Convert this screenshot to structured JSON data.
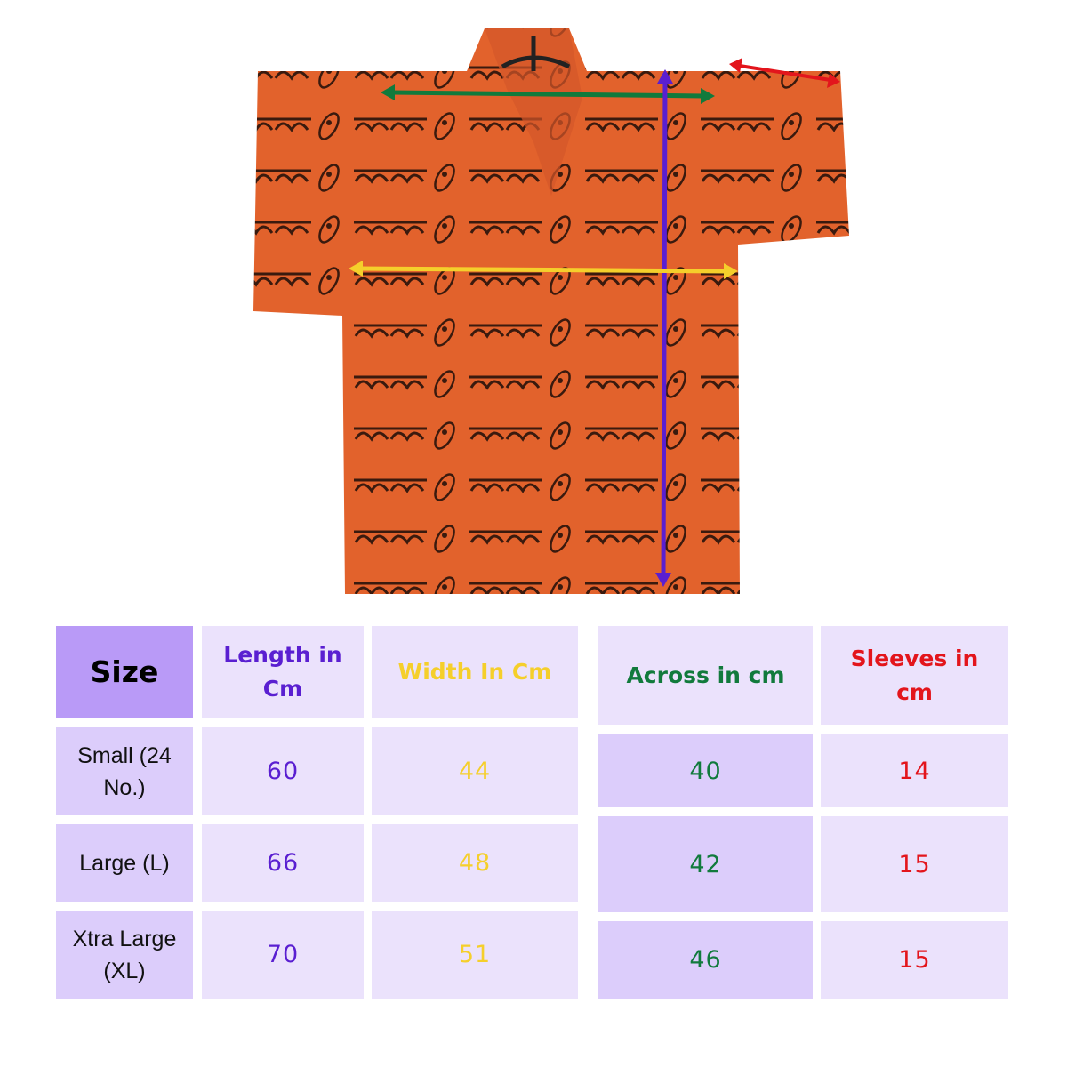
{
  "colors": {
    "length": "#5a1fd1",
    "width": "#f5cf2b",
    "across": "#117a3c",
    "sleeves": "#e3151c",
    "shirt": "#e2622c",
    "size_header_bg": "#b99af7",
    "cell_light": "#ebe2fc",
    "cell_mid": "#dccdfb"
  },
  "image": {
    "subject": "shirt-photo",
    "arrows": [
      "across",
      "length",
      "width",
      "sleeves"
    ]
  },
  "table": {
    "headers": {
      "size": "Size",
      "length": "Length in Cm",
      "width": "Width In Cm",
      "across": "Across in cm",
      "sleeves": "Sleeves in cm"
    },
    "rows": [
      {
        "size": "Small (24 No.)",
        "length": "60",
        "width": "44",
        "across": "40",
        "sleeves": "14"
      },
      {
        "size": "Large (L)",
        "length": "66",
        "width": "48",
        "across": "42",
        "sleeves": "15"
      },
      {
        "size": "Xtra Large (XL)",
        "length": "70",
        "width": "51",
        "across": "46",
        "sleeves": "15"
      }
    ]
  }
}
